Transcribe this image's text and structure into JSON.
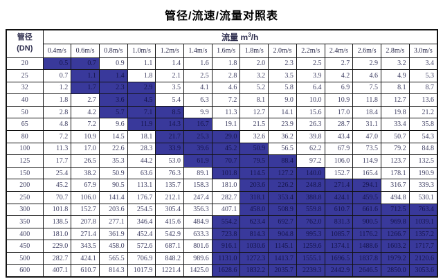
{
  "title": "管径/流速/流量对照表",
  "table": {
    "corner": {
      "line1": "管径",
      "line2": "(DN)"
    },
    "flow_header": {
      "prefix": "流量 m",
      "sup": "3",
      "suffix": "/h"
    },
    "highlight_color": "#39399b",
    "velocity_headers": [
      "0.4m/s",
      "0.6m/s",
      "0.8m/s",
      "1.0m/s",
      "1.2m/s",
      "1.4m/s",
      "1.6m/s",
      "1.8m/s",
      "2.0m/s",
      "2.2m/s",
      "2.4m/s",
      "2.6m/s",
      "2.8m/s",
      "3.0m/s"
    ],
    "rows": [
      {
        "dn": "20",
        "values": [
          "0.5",
          "0.7",
          "0.9",
          "1.1",
          "1.4",
          "1.6",
          "1.8",
          "2.0",
          "2.3",
          "2.5",
          "2.7",
          "2.9",
          "3.2",
          "3.4"
        ],
        "highlight": {
          "from": 0,
          "to": 1
        }
      },
      {
        "dn": "25",
        "values": [
          "0.7",
          "1.1",
          "1.4",
          "1.8",
          "2.1",
          "2.5",
          "2.8",
          "3.2",
          "3.5",
          "3.9",
          "4.2",
          "4.6",
          "4.9",
          "5.3"
        ],
        "highlight": {
          "from": 1,
          "to": 2
        }
      },
      {
        "dn": "32",
        "values": [
          "1.2",
          "1.7",
          "2.3",
          "2.9",
          "3.5",
          "4.1",
          "4.6",
          "5.2",
          "5.8",
          "6.4",
          "6.9",
          "7.5",
          "8.1",
          "8.7"
        ],
        "highlight": {
          "from": 1,
          "to": 3
        }
      },
      {
        "dn": "40",
        "values": [
          "1.8",
          "2.7",
          "3.6",
          "4.5",
          "5.4",
          "6.3",
          "7.2",
          "8.1",
          "9.0",
          "10.0",
          "10.9",
          "11.8",
          "12.7",
          "13.6"
        ],
        "highlight": {
          "from": 2,
          "to": 3
        }
      },
      {
        "dn": "50",
        "values": [
          "2.8",
          "4.2",
          "5.7",
          "7.1",
          "8.5",
          "9.9",
          "11.3",
          "12.7",
          "14.1",
          "15.6",
          "17.0",
          "18.4",
          "19.8",
          "21.2"
        ],
        "highlight": {
          "from": 2,
          "to": 4
        }
      },
      {
        "dn": "65",
        "values": [
          "4.8",
          "7.2",
          "9.6",
          "11.9",
          "14.3",
          "16.7",
          "19.1",
          "21.5",
          "23.9",
          "26.3",
          "28.7",
          "31.1",
          "33.4",
          "35.8"
        ],
        "highlight": {
          "from": 3,
          "to": 5
        }
      },
      {
        "dn": "80",
        "values": [
          "7.2",
          "10.9",
          "14.5",
          "18.1",
          "21.7",
          "25.3",
          "29.0",
          "32.6",
          "36.2",
          "39.8",
          "43.4",
          "47.0",
          "50.7",
          "54.3"
        ],
        "highlight": {
          "from": 4,
          "to": 6
        }
      },
      {
        "dn": "100",
        "values": [
          "11.3",
          "17.0",
          "22.6",
          "28.3",
          "33.9",
          "39.6",
          "45.2",
          "50.9",
          "56.5",
          "62.2",
          "67.9",
          "73.5",
          "79.2",
          "84.8"
        ],
        "highlight": {
          "from": 4,
          "to": 7
        }
      },
      {
        "dn": "125",
        "values": [
          "17.7",
          "26.5",
          "35.3",
          "44.2",
          "53.0",
          "61.9",
          "70.7",
          "79.5",
          "88.4",
          "97.2",
          "106.0",
          "114.9",
          "123.7",
          "132.5"
        ],
        "highlight": {
          "from": 5,
          "to": 8
        }
      },
      {
        "dn": "150",
        "values": [
          "25.4",
          "38.2",
          "50.9",
          "63.6",
          "76.3",
          "89.1",
          "101.8",
          "114.5",
          "127.2",
          "140.0",
          "152.7",
          "165.4",
          "178.1",
          "190.9"
        ],
        "highlight": {
          "from": 6,
          "to": 9
        }
      },
      {
        "dn": "200",
        "values": [
          "45.2",
          "67.9",
          "90.5",
          "113.1",
          "135.7",
          "158.3",
          "181.0",
          "203.6",
          "226.2",
          "248.8",
          "271.4",
          "294.1",
          "316.7",
          "339.3"
        ],
        "highlight": {
          "from": 7,
          "to": 11
        }
      },
      {
        "dn": "250",
        "values": [
          "70.7",
          "106.0",
          "141.4",
          "176.7",
          "212.1",
          "247.4",
          "282.7",
          "318.1",
          "353.4",
          "388.8",
          "424.1",
          "459.5",
          "494.8",
          "530.1"
        ],
        "highlight": {
          "from": 7,
          "to": 11
        }
      },
      {
        "dn": "300",
        "values": [
          "101.8",
          "152.7",
          "203.6",
          "254.5",
          "305.4",
          "356.3",
          "407.1",
          "458.0",
          "508.9",
          "559.8",
          "610.7",
          "661.6",
          "712.5",
          "763.4"
        ],
        "highlight": {
          "from": 7,
          "to": 13
        }
      },
      {
        "dn": "350",
        "values": [
          "138.5",
          "207.8",
          "277.1",
          "346.4",
          "415.6",
          "484.9",
          "554.2",
          "623.4",
          "692.7",
          "762.0",
          "831.3",
          "900.5",
          "969.8",
          "1039.1"
        ],
        "highlight": {
          "from": 6,
          "to": 13
        }
      },
      {
        "dn": "400",
        "values": [
          "181.0",
          "271.4",
          "361.9",
          "452.4",
          "542.9",
          "633.3",
          "723.8",
          "814.3",
          "904.8",
          "995.3",
          "1085.7",
          "1176.2",
          "1266.7",
          "1357.2"
        ],
        "highlight": {
          "from": 6,
          "to": 13
        }
      },
      {
        "dn": "450",
        "values": [
          "229.0",
          "343.5",
          "458.0",
          "572.6",
          "687.1",
          "801.6",
          "916.1",
          "1030.6",
          "1145.1",
          "1259.6",
          "1374.1",
          "1488.6",
          "1603.2",
          "1717.7"
        ],
        "highlight": {
          "from": 6,
          "to": 13
        }
      },
      {
        "dn": "500",
        "values": [
          "282.7",
          "424.1",
          "565.5",
          "706.9",
          "848.2",
          "989.6",
          "1131.0",
          "1272.3",
          "1413.7",
          "1555.1",
          "1696.5",
          "1837.8",
          "1979.2",
          "2120.6"
        ],
        "highlight": {
          "from": 6,
          "to": 13
        }
      },
      {
        "dn": "600",
        "values": [
          "407.1",
          "610.7",
          "814.3",
          "1017.9",
          "1221.4",
          "1425.0",
          "1628.6",
          "1832.2",
          "2035.7",
          "2239.3",
          "2442.9",
          "2646.5",
          "2850.0",
          "3053.6"
        ],
        "highlight": {
          "from": 6,
          "to": 13
        }
      }
    ]
  }
}
